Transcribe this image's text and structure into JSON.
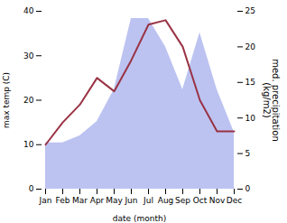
{
  "chart_data": {
    "type": "line",
    "categories": [
      "Jan",
      "Feb",
      "Mar",
      "Apr",
      "May",
      "Jun",
      "Jul",
      "Aug",
      "Sep",
      "Oct",
      "Nov",
      "Dec"
    ],
    "xlabel": "date (month)",
    "ylabel": "max temp (C)",
    "y2label": "med. precipitation\n(kg/m2)",
    "series": [
      {
        "type": "area",
        "axis": "y2",
        "color": "#b0b8ee",
        "values": [
          6.5,
          6.5,
          7.5,
          9.5,
          14,
          24,
          24,
          20,
          14,
          22,
          14,
          8
        ]
      },
      {
        "type": "line",
        "color": "#993344",
        "values": [
          10,
          15,
          19,
          25,
          22,
          29,
          37,
          38,
          32,
          20,
          13,
          13
        ]
      }
    ],
    "ylim": [
      0,
      40
    ],
    "yticks": [
      0,
      10,
      20,
      30,
      40
    ],
    "y2lim": [
      0,
      25
    ],
    "y2ticks": [
      0,
      5,
      10,
      15,
      20,
      25
    ]
  }
}
